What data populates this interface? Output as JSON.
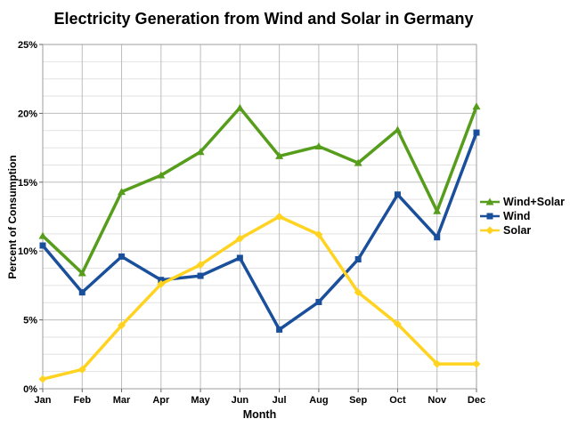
{
  "chart_data": {
    "type": "line",
    "title": "Electricity Generation from Wind and Solar in Germany",
    "xlabel": "Month",
    "ylabel": "Percent of Consumption",
    "categories": [
      "Jan",
      "Feb",
      "Mar",
      "Apr",
      "May",
      "Jun",
      "Jul",
      "Aug",
      "Sep",
      "Oct",
      "Nov",
      "Dec"
    ],
    "ylim": [
      0,
      25
    ],
    "y_major_step": 5,
    "y_minor_step": 1.25,
    "y_tick_labels": [
      "0%",
      "5%",
      "10%",
      "15%",
      "20%",
      "25%"
    ],
    "grid": "horizontal major+minor, vertical major",
    "legend_position": "right",
    "series": [
      {
        "name": "Wind+Solar",
        "color": "#579D1C",
        "marker": "arrow",
        "values": [
          11.1,
          8.4,
          14.3,
          15.5,
          17.2,
          20.4,
          16.9,
          17.6,
          16.4,
          18.8,
          12.9,
          20.5
        ]
      },
      {
        "name": "Wind",
        "color": "#1A4F9C",
        "marker": "square",
        "values": [
          10.4,
          7.0,
          9.6,
          7.9,
          8.2,
          9.5,
          4.3,
          6.3,
          9.4,
          14.1,
          11.0,
          18.6
        ]
      },
      {
        "name": "Solar",
        "color": "#FFD320",
        "marker": "diamond",
        "values": [
          0.7,
          1.4,
          4.6,
          7.6,
          9.0,
          10.9,
          12.5,
          11.2,
          7.0,
          4.7,
          1.8,
          1.8
        ]
      }
    ],
    "colors": {
      "background": "#FFFFFF",
      "major_grid": "#BDBDBD",
      "minor_grid": "#E2E2E2",
      "plot_border": "#9E9E9E",
      "tick": "#666666",
      "text": "#000000"
    }
  }
}
